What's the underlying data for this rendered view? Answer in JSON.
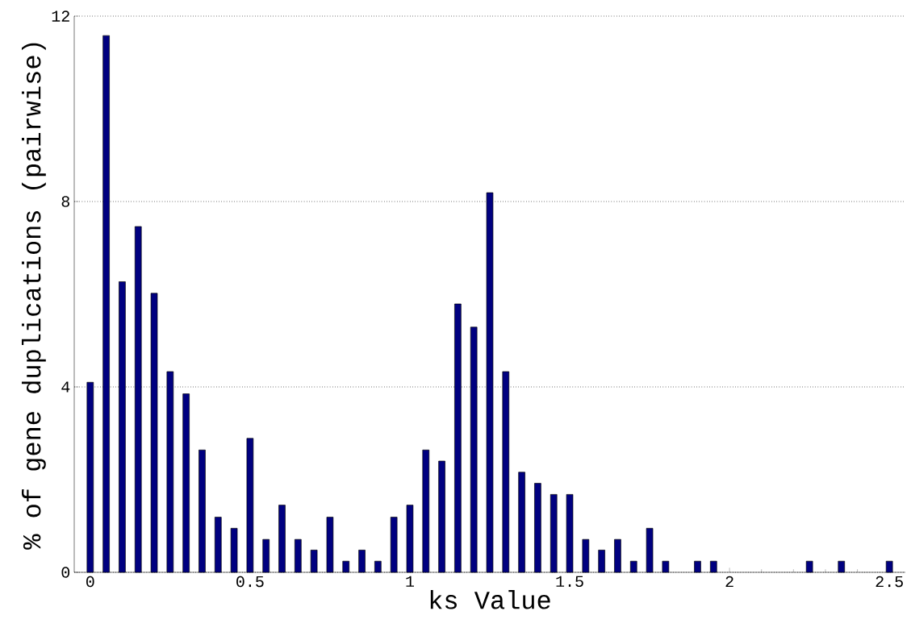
{
  "chart_data": {
    "type": "bar",
    "xlabel": "ks Value",
    "ylabel": "% of gene duplications (pairwise)",
    "x": [
      0,
      0.05,
      0.1,
      0.15,
      0.2,
      0.25,
      0.3,
      0.35,
      0.4,
      0.45,
      0.5,
      0.55,
      0.6,
      0.65,
      0.7,
      0.75,
      0.8,
      0.85,
      0.9,
      0.95,
      1,
      1.05,
      1.1,
      1.15,
      1.2,
      1.25,
      1.3,
      1.35,
      1.4,
      1.45,
      1.5,
      1.55,
      1.6,
      1.65,
      1.7,
      1.75,
      1.8,
      1.9,
      1.95,
      2.25,
      2.35,
      2.5
    ],
    "values": [
      4.1,
      11.58,
      6.27,
      7.46,
      6.02,
      4.33,
      3.85,
      2.64,
      1.19,
      0.95,
      2.89,
      0.71,
      1.45,
      0.71,
      0.48,
      1.19,
      0.24,
      0.48,
      0.24,
      1.19,
      1.45,
      2.64,
      2.4,
      5.79,
      5.29,
      8.19,
      4.33,
      2.16,
      1.92,
      1.68,
      1.68,
      0.71,
      0.48,
      0.71,
      0.24,
      0.95,
      0.24,
      0.24,
      0.24,
      0.24,
      0.24,
      0.24
    ],
    "color": "#000080",
    "xlim": [
      -0.05,
      2.55
    ],
    "ylim": [
      0,
      12
    ],
    "xticks": [
      0,
      0.5,
      1,
      1.5,
      2,
      2.5
    ],
    "yticks": [
      0,
      4,
      8,
      12
    ],
    "grid": "y"
  }
}
